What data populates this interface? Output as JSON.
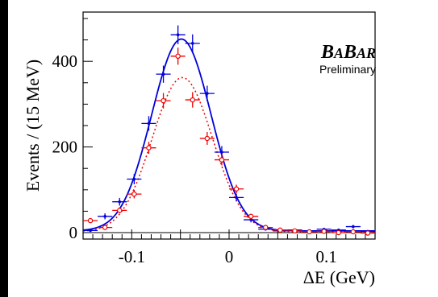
{
  "chart_data": {
    "type": "scatter",
    "xlabel": "ΔE (GeV)",
    "ylabel": "Events / (15 MeV)",
    "xlim": [
      -0.15,
      0.15
    ],
    "ylim": [
      -15,
      515
    ],
    "x_ticks": [
      -0.1,
      0,
      0.1
    ],
    "x_tick_labels": [
      "-0.1",
      "0",
      "0.1"
    ],
    "y_ticks": [
      0,
      200,
      400
    ],
    "y_tick_labels": [
      "0",
      "200",
      "400"
    ],
    "grid": false,
    "annotations": {
      "logo": "BABAR",
      "logo_parts": [
        "B",
        "A",
        "B",
        "AR"
      ],
      "subtitle": "Preliminary"
    },
    "series": [
      {
        "style": "points-with-errors",
        "color": "#0000dd",
        "x": [
          -0.1425,
          -0.1275,
          -0.1125,
          -0.0975,
          -0.0825,
          -0.0675,
          -0.0525,
          -0.0375,
          -0.0225,
          -0.0075,
          0.0075,
          0.0225,
          0.0375,
          0.0525,
          0.0675,
          0.0825,
          0.0975,
          0.1125,
          0.1275,
          0.1425
        ],
        "y": [
          5,
          38,
          72,
          125,
          255,
          370,
          462,
          442,
          325,
          188,
          82,
          30,
          8,
          4,
          6,
          4,
          8,
          6,
          14,
          3
        ],
        "yerr": [
          3,
          7,
          9,
          12,
          17,
          20,
          22,
          21,
          18,
          14,
          9,
          6,
          3,
          2,
          3,
          2,
          3,
          3,
          4,
          2
        ]
      },
      {
        "style": "points-with-errors",
        "color": "#ee0000",
        "x": [
          -0.1425,
          -0.1275,
          -0.1125,
          -0.0975,
          -0.0825,
          -0.0675,
          -0.0525,
          -0.0375,
          -0.0225,
          -0.0075,
          0.0075,
          0.0225,
          0.0375,
          0.0525,
          0.0675,
          0.0825,
          0.0975,
          0.1125,
          0.1275,
          0.1425
        ],
        "y": [
          28,
          12,
          52,
          90,
          198,
          308,
          412,
          310,
          220,
          170,
          102,
          38,
          12,
          6,
          4,
          2,
          3,
          0,
          2,
          -1
        ],
        "yerr": [
          5,
          4,
          7,
          10,
          14,
          18,
          20,
          18,
          15,
          13,
          10,
          6,
          3,
          2,
          2,
          2,
          2,
          2,
          2,
          2
        ]
      },
      {
        "style": "solid-curve",
        "color": "#0000dd",
        "model": "gaussian",
        "mean": -0.049,
        "sigma": 0.0305,
        "amplitude": 448,
        "baseline": 4
      },
      {
        "style": "dotted-curve",
        "color": "#ee0000",
        "model": "gaussian",
        "mean": -0.048,
        "sigma": 0.031,
        "amplitude": 360,
        "baseline": 2
      }
    ]
  }
}
